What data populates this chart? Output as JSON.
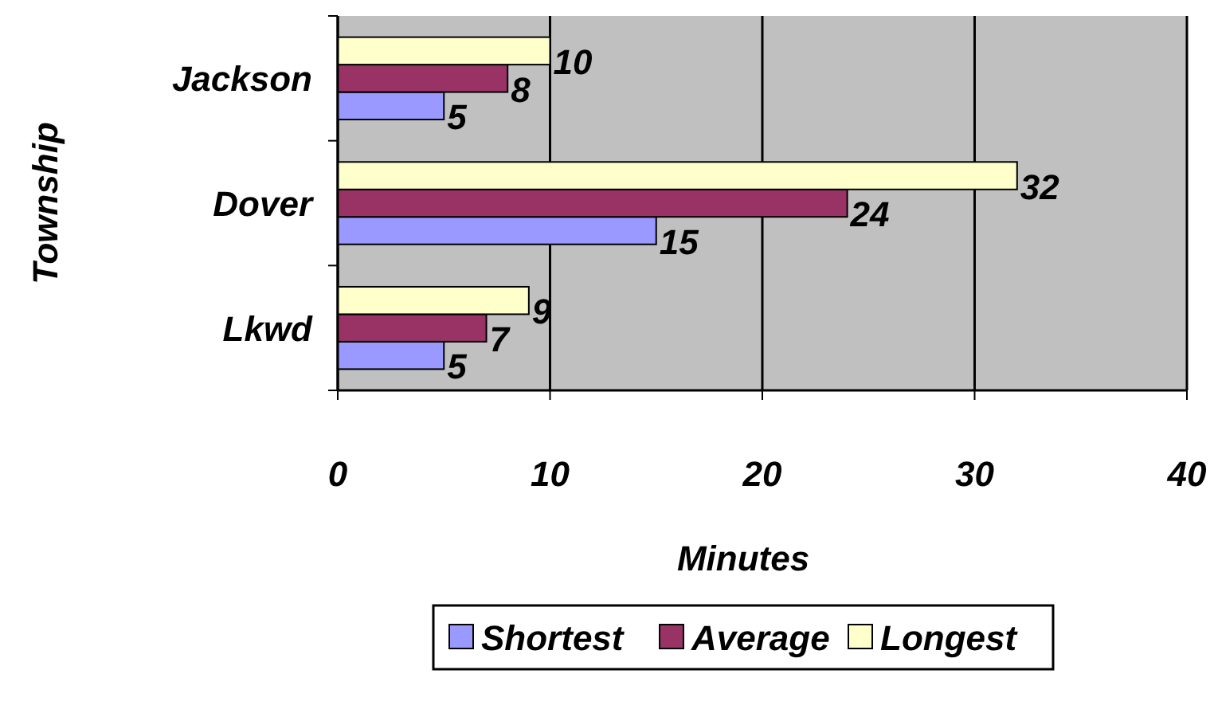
{
  "chart_data": {
    "type": "bar",
    "orientation": "horizontal",
    "categories": [
      "Jackson",
      "Dover",
      "Lkwd"
    ],
    "series": [
      {
        "name": "Shortest",
        "color": "#9999ff",
        "values": [
          5,
          15,
          5
        ]
      },
      {
        "name": "Average",
        "color": "#993366",
        "values": [
          8,
          24,
          7
        ]
      },
      {
        "name": "Longest",
        "color": "#ffffcc",
        "values": [
          10,
          32,
          9
        ]
      }
    ],
    "xlim": [
      0,
      40
    ],
    "xticks": [
      0,
      10,
      20,
      30,
      40
    ],
    "xlabel": "Minutes",
    "ylabel": "Township",
    "grid": "x",
    "legend": "bottom",
    "data_labels": true
  }
}
